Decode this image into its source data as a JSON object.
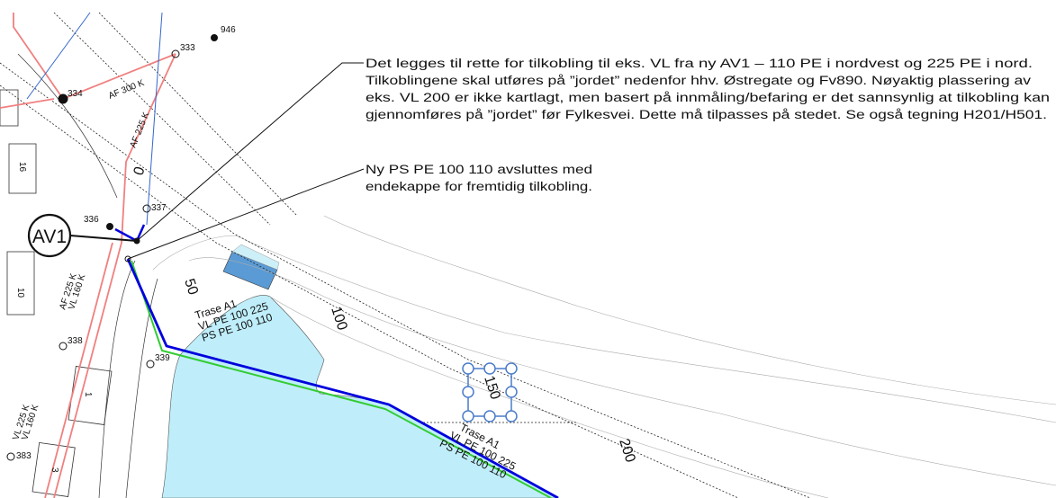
{
  "annotations": {
    "main": [
      "Det legges til rette for tilkobling til eks. VL fra ny AV1 – 110 PE i nordvest og 225 PE i nord.",
      "Tilkoblingene skal utføres på ”jordet” nedenfor hhv. Østregate og Fv890. Nøyaktig plassering av",
      "eks. VL 200 er ikke kartlagt, men basert på innmåling/befaring er det sannsynlig at tilkobling kan",
      "gjennomføres på ”jordet” før Fylkesvei. Dette må tilpasses på stedet. Se også tegning H201/H501."
    ],
    "secondary": [
      "Ny PS PE 100 110 avsluttes med",
      "endekappe for fremtidig tilkobling."
    ]
  },
  "nodes": {
    "manhole": "AV1",
    "points": [
      "946",
      "333",
      "334",
      "337",
      "336",
      "338",
      "339",
      "383"
    ]
  },
  "pipe_labels": [
    "AF 300 K",
    "AF 225 K",
    "AF 225 K",
    "VL 160 K",
    "VL 225 K",
    "VL 160 K",
    "0"
  ],
  "contours": [
    "50",
    "100",
    "150",
    "200"
  ],
  "routes": [
    {
      "name": "Trase A1",
      "lines": [
        "VL PE 100 225",
        "PS PE 100 110"
      ]
    },
    {
      "name": "Trase A1",
      "lines": [
        "VL PE 100 225",
        "PS PE 100 110"
      ]
    }
  ],
  "buildings": [
    "16",
    "10",
    "1",
    "3"
  ]
}
